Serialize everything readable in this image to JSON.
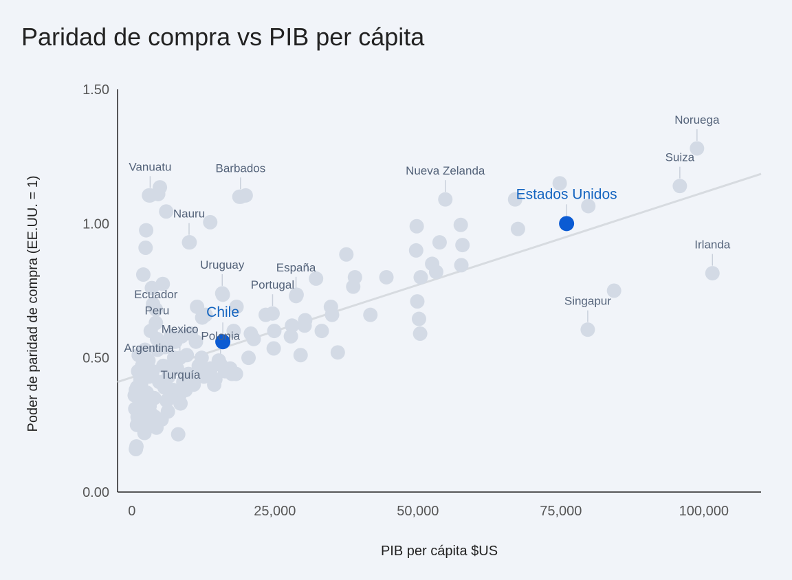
{
  "chart_data": {
    "type": "scatter",
    "title": "Paridad de compra vs PIB per cápita",
    "xlabel": "PIB per cápita $US",
    "ylabel": "Poder de paridad de compra (EE.UU. = 1)",
    "xlim": [
      -2500,
      110000
    ],
    "ylim": [
      0,
      1.5
    ],
    "x_ticks": [
      0,
      25000,
      50000,
      75000,
      100000
    ],
    "x_tick_labels": [
      "0",
      "25,000",
      "50,000",
      "75,000",
      "100,000"
    ],
    "y_ticks": [
      0,
      0.5,
      1.0,
      1.5
    ],
    "y_tick_labels": [
      "0.00",
      "0.50",
      "1.00",
      "1.50"
    ],
    "trendline": {
      "x0": -2500,
      "y0": 0.41,
      "x1": 110000,
      "y1": 1.185
    },
    "colors": {
      "point": "#d3dae5",
      "highlight": "#0b5bd3",
      "highlight_label": "#1565c0",
      "trendline": "#d7dbe0"
    },
    "labeled_points": [
      {
        "name": "Noruega",
        "x": 98800,
        "y": 1.28
      },
      {
        "name": "Suiza",
        "x": 95800,
        "y": 1.14
      },
      {
        "name": "Irlanda",
        "x": 101500,
        "y": 0.815
      },
      {
        "name": "Singapur",
        "x": 79700,
        "y": 0.605
      },
      {
        "name": "Nueva Zelanda",
        "x": 54800,
        "y": 1.09
      },
      {
        "name": "Vanuatu",
        "x": 3200,
        "y": 1.105
      },
      {
        "name": "Barbados",
        "x": 19000,
        "y": 1.1
      },
      {
        "name": "Nauru",
        "x": 10000,
        "y": 0.93
      },
      {
        "name": "Uruguay",
        "x": 15800,
        "y": 0.74
      },
      {
        "name": "España",
        "x": 28700,
        "y": 0.73
      },
      {
        "name": "Portugal",
        "x": 24600,
        "y": 0.665
      },
      {
        "name": "Ecuador",
        "x": 4200,
        "y": 0.63
      },
      {
        "name": "Peru",
        "x": 4400,
        "y": 0.57
      },
      {
        "name": "Mexico",
        "x": 8400,
        "y": 0.5
      },
      {
        "name": "Polonia",
        "x": 15500,
        "y": 0.475
      },
      {
        "name": "Argentina",
        "x": 3000,
        "y": 0.43
      },
      {
        "name": "Turquía",
        "x": 8500,
        "y": 0.33
      }
    ],
    "highlighted_points": [
      {
        "name": "Estados Unidos",
        "x": 76000,
        "y": 1.0
      },
      {
        "name": "Chile",
        "x": 15900,
        "y": 0.56
      }
    ],
    "other_points": [
      {
        "x": 74800,
        "y": 1.15
      },
      {
        "x": 79800,
        "y": 1.065
      },
      {
        "x": 67500,
        "y": 0.98
      },
      {
        "x": 67000,
        "y": 1.09
      },
      {
        "x": 57500,
        "y": 0.995
      },
      {
        "x": 57800,
        "y": 0.92
      },
      {
        "x": 57600,
        "y": 0.845
      },
      {
        "x": 53800,
        "y": 0.93
      },
      {
        "x": 52500,
        "y": 0.85
      },
      {
        "x": 53200,
        "y": 0.82
      },
      {
        "x": 50500,
        "y": 0.8
      },
      {
        "x": 49800,
        "y": 0.99
      },
      {
        "x": 49700,
        "y": 0.9
      },
      {
        "x": 49900,
        "y": 0.71
      },
      {
        "x": 50200,
        "y": 0.645
      },
      {
        "x": 50400,
        "y": 0.59
      },
      {
        "x": 84300,
        "y": 0.75
      },
      {
        "x": 44500,
        "y": 0.8
      },
      {
        "x": 41700,
        "y": 0.66
      },
      {
        "x": 39000,
        "y": 0.8
      },
      {
        "x": 38700,
        "y": 0.765
      },
      {
        "x": 37500,
        "y": 0.885
      },
      {
        "x": 36000,
        "y": 0.52
      },
      {
        "x": 35000,
        "y": 0.66
      },
      {
        "x": 34800,
        "y": 0.69
      },
      {
        "x": 33200,
        "y": 0.6
      },
      {
        "x": 32200,
        "y": 0.795
      },
      {
        "x": 30300,
        "y": 0.64
      },
      {
        "x": 30200,
        "y": 0.62
      },
      {
        "x": 29500,
        "y": 0.51
      },
      {
        "x": 28800,
        "y": 0.735
      },
      {
        "x": 28000,
        "y": 0.62
      },
      {
        "x": 27800,
        "y": 0.58
      },
      {
        "x": 24900,
        "y": 0.6
      },
      {
        "x": 24800,
        "y": 0.535
      },
      {
        "x": 23400,
        "y": 0.66
      },
      {
        "x": 21300,
        "y": 0.57
      },
      {
        "x": 20800,
        "y": 0.59
      },
      {
        "x": 20400,
        "y": 0.5
      },
      {
        "x": 19900,
        "y": 1.105
      },
      {
        "x": 18800,
        "y": 1.1
      },
      {
        "x": 18300,
        "y": 0.69
      },
      {
        "x": 18200,
        "y": 0.44
      },
      {
        "x": 17800,
        "y": 0.6
      },
      {
        "x": 17200,
        "y": 0.46
      },
      {
        "x": 15900,
        "y": 0.735
      },
      {
        "x": 15200,
        "y": 0.49
      },
      {
        "x": 14600,
        "y": 0.42
      },
      {
        "x": 14400,
        "y": 0.4
      },
      {
        "x": 13700,
        "y": 1.005
      },
      {
        "x": 13200,
        "y": 0.44
      },
      {
        "x": 12900,
        "y": 0.66
      },
      {
        "x": 12300,
        "y": 0.65
      },
      {
        "x": 12200,
        "y": 0.5
      },
      {
        "x": 11700,
        "y": 0.47
      },
      {
        "x": 11400,
        "y": 0.69
      },
      {
        "x": 11200,
        "y": 0.56
      },
      {
        "x": 10300,
        "y": 0.59
      },
      {
        "x": 10100,
        "y": 0.93
      },
      {
        "x": 9400,
        "y": 0.38
      },
      {
        "x": 8700,
        "y": 0.58
      },
      {
        "x": 8100,
        "y": 0.215
      },
      {
        "x": 7600,
        "y": 0.56
      },
      {
        "x": 6800,
        "y": 0.58
      },
      {
        "x": 6300,
        "y": 0.3
      },
      {
        "x": 6000,
        "y": 1.045
      },
      {
        "x": 5400,
        "y": 0.775
      },
      {
        "x": 4900,
        "y": 1.135
      },
      {
        "x": 4600,
        "y": 1.11
      },
      {
        "x": 4200,
        "y": 0.68
      },
      {
        "x": 3700,
        "y": 0.7
      },
      {
        "x": 3500,
        "y": 0.76
      },
      {
        "x": 3300,
        "y": 0.6
      },
      {
        "x": 3000,
        "y": 1.105
      },
      {
        "x": 2800,
        "y": 0.26
      },
      {
        "x": 2500,
        "y": 0.975
      },
      {
        "x": 2400,
        "y": 0.91
      },
      {
        "x": 2300,
        "y": 0.53
      },
      {
        "x": 2000,
        "y": 0.81
      },
      {
        "x": 1800,
        "y": 0.47
      },
      {
        "x": 1600,
        "y": 0.4
      },
      {
        "x": 1400,
        "y": 0.33
      },
      {
        "x": 1200,
        "y": 0.51
      },
      {
        "x": 1000,
        "y": 0.28
      },
      {
        "x": 900,
        "y": 0.39
      },
      {
        "x": 800,
        "y": 0.17
      },
      {
        "x": 700,
        "y": 0.16
      },
      {
        "x": 600,
        "y": 0.31
      },
      {
        "x": 500,
        "y": 0.36
      },
      {
        "x": 3600,
        "y": 0.45
      },
      {
        "x": 4800,
        "y": 0.41
      },
      {
        "x": 5500,
        "y": 0.47
      },
      {
        "x": 6400,
        "y": 0.43
      },
      {
        "x": 7200,
        "y": 0.38
      },
      {
        "x": 7900,
        "y": 0.46
      },
      {
        "x": 9000,
        "y": 0.41
      },
      {
        "x": 9900,
        "y": 0.44
      },
      {
        "x": 10800,
        "y": 0.4
      },
      {
        "x": 2200,
        "y": 0.22
      },
      {
        "x": 3400,
        "y": 0.29
      },
      {
        "x": 4300,
        "y": 0.24
      },
      {
        "x": 5200,
        "y": 0.27
      },
      {
        "x": 6100,
        "y": 0.34
      },
      {
        "x": 1900,
        "y": 0.25
      },
      {
        "x": 1500,
        "y": 0.42
      },
      {
        "x": 2600,
        "y": 0.37
      },
      {
        "x": 3900,
        "y": 0.35
      },
      {
        "x": 5700,
        "y": 0.39
      },
      {
        "x": 6900,
        "y": 0.47
      },
      {
        "x": 7400,
        "y": 0.5
      },
      {
        "x": 8300,
        "y": 0.36
      },
      {
        "x": 9600,
        "y": 0.51
      },
      {
        "x": 12600,
        "y": 0.43
      },
      {
        "x": 13800,
        "y": 0.46
      },
      {
        "x": 16300,
        "y": 0.45
      },
      {
        "x": 17500,
        "y": 0.44
      },
      {
        "x": 4500,
        "y": 0.53
      },
      {
        "x": 5800,
        "y": 0.54
      },
      {
        "x": 2900,
        "y": 0.49
      },
      {
        "x": 1100,
        "y": 0.45
      },
      {
        "x": 1700,
        "y": 0.36
      },
      {
        "x": 3100,
        "y": 0.32
      },
      {
        "x": 4000,
        "y": 0.28
      },
      {
        "x": 700,
        "y": 0.38
      },
      {
        "x": 900,
        "y": 0.25
      },
      {
        "x": 2100,
        "y": 0.3
      }
    ]
  }
}
